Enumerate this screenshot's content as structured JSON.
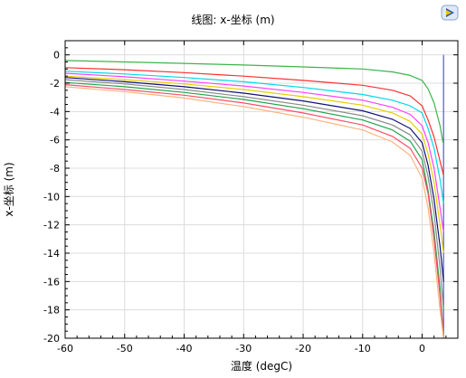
{
  "window": {
    "title": "线图: x-坐标 (m)",
    "logo_icon": "comsol-logo-icon"
  },
  "chart_data": {
    "type": "line",
    "title": "线图: x-坐标 (m)",
    "xlabel": "温度 (degC)",
    "ylabel": "x-坐标 (m)",
    "xlim": [
      -60,
      6
    ],
    "ylim": [
      -20,
      1
    ],
    "xticks": [
      "-60",
      "-50",
      "-40",
      "-30",
      "-20",
      "-10",
      "0"
    ],
    "yticks": [
      "0",
      "-2",
      "-4",
      "-6",
      "-8",
      "-10",
      "-12",
      "-14",
      "-16",
      "-18",
      "-20"
    ],
    "grid": true,
    "legend": "none",
    "series": [
      {
        "color": "#4d55d9",
        "x": [
          3.6,
          3.6,
          3.6,
          3.6
        ],
        "y": [
          0,
          -2,
          -10,
          -20
        ]
      },
      {
        "color": "#3cb44b",
        "x": [
          -60,
          -50,
          -40,
          -30,
          -20,
          -10,
          -5,
          -2,
          0,
          1,
          2,
          3,
          3.5
        ],
        "y": [
          -0.4,
          -0.5,
          -0.6,
          -0.72,
          -0.85,
          -1.0,
          -1.2,
          -1.45,
          -1.8,
          -2.4,
          -3.4,
          -5.0,
          -6.2
        ]
      },
      {
        "color": "#ff3030",
        "x": [
          -60,
          -50,
          -40,
          -30,
          -20,
          -10,
          -5,
          -2,
          0,
          1,
          2,
          3,
          3.6
        ],
        "y": [
          -0.9,
          -1.05,
          -1.25,
          -1.5,
          -1.8,
          -2.15,
          -2.5,
          -2.9,
          -3.6,
          -4.6,
          -5.8,
          -7.5,
          -8.5
        ]
      },
      {
        "color": "#00d9e6",
        "x": [
          -60,
          -50,
          -40,
          -30,
          -20,
          -10,
          -5,
          -2,
          0,
          1,
          2,
          3,
          3.6
        ],
        "y": [
          -1.15,
          -1.35,
          -1.6,
          -1.9,
          -2.3,
          -2.8,
          -3.2,
          -3.6,
          -4.1,
          -5.2,
          -6.6,
          -8.8,
          -10.5
        ]
      },
      {
        "color": "#ff40ff",
        "x": [
          -60,
          -50,
          -40,
          -30,
          -20,
          -10,
          -5,
          -2,
          0,
          1,
          2,
          3,
          3.6
        ],
        "y": [
          -1.3,
          -1.55,
          -1.85,
          -2.2,
          -2.65,
          -3.2,
          -3.7,
          -4.2,
          -5.0,
          -6.2,
          -8.0,
          -10.8,
          -12.5
        ]
      },
      {
        "color": "#e6cf00",
        "x": [
          -60,
          -50,
          -40,
          -30,
          -20,
          -10,
          -5,
          -2,
          0,
          1,
          2,
          3,
          3.6
        ],
        "y": [
          -1.5,
          -1.75,
          -2.05,
          -2.45,
          -2.95,
          -3.55,
          -4.1,
          -4.7,
          -5.6,
          -7.0,
          -9.0,
          -12.0,
          -14.0
        ]
      },
      {
        "color": "#10107a",
        "x": [
          -60,
          -50,
          -40,
          -30,
          -20,
          -10,
          -5,
          -2,
          0,
          1,
          2,
          3,
          3.6
        ],
        "y": [
          -1.6,
          -1.9,
          -2.25,
          -2.7,
          -3.25,
          -3.95,
          -4.55,
          -5.2,
          -6.2,
          -7.8,
          -10.2,
          -13.5,
          -16.0
        ]
      },
      {
        "color": "#8a8a8a",
        "x": [
          -60,
          -50,
          -40,
          -30,
          -20,
          -10,
          -5,
          -2,
          0,
          1,
          2,
          3,
          3.6
        ],
        "y": [
          -1.75,
          -2.05,
          -2.45,
          -2.95,
          -3.55,
          -4.3,
          -4.95,
          -5.65,
          -6.8,
          -8.6,
          -11.2,
          -15.0,
          -18.0
        ]
      },
      {
        "color": "#1fa34a",
        "x": [
          -60,
          -50,
          -40,
          -30,
          -20,
          -10,
          -5,
          -2,
          0,
          1,
          2,
          3,
          3.6
        ],
        "y": [
          -1.95,
          -2.25,
          -2.65,
          -3.15,
          -3.8,
          -4.6,
          -5.3,
          -6.1,
          -7.4,
          -9.6,
          -12.5,
          -16.5,
          -20.0
        ]
      },
      {
        "color": "#ff4d6a",
        "x": [
          -60,
          -50,
          -40,
          -30,
          -20,
          -10,
          -5,
          -2,
          0,
          1,
          2,
          3,
          3.6
        ],
        "y": [
          -2.1,
          -2.45,
          -2.85,
          -3.4,
          -4.1,
          -4.95,
          -5.75,
          -6.6,
          -8.0,
          -9.8,
          -13.0,
          -17.0,
          -20.0
        ]
      },
      {
        "color": "#ffb380",
        "x": [
          -60,
          -50,
          -40,
          -30,
          -20,
          -10,
          -5,
          -2,
          0,
          1,
          2,
          3,
          3.6
        ],
        "y": [
          -2.25,
          -2.6,
          -3.05,
          -3.65,
          -4.4,
          -5.3,
          -6.15,
          -7.1,
          -8.7,
          -10.8,
          -14.0,
          -18.0,
          -20.0
        ]
      }
    ]
  }
}
